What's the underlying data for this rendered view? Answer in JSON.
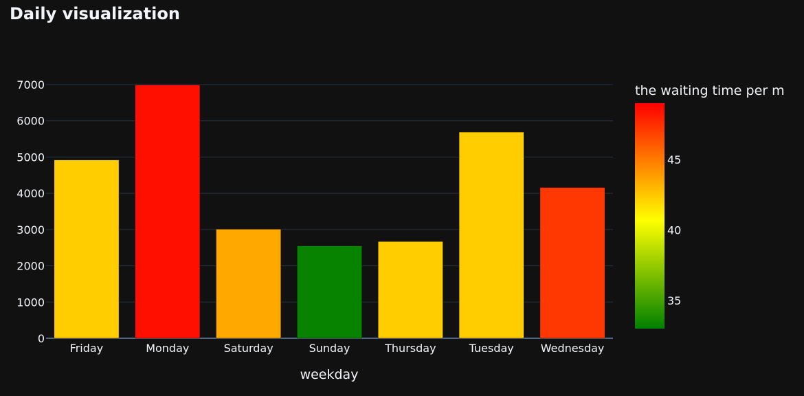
{
  "chart_data": {
    "type": "bar",
    "title": "Daily visualization",
    "xlabel": "weekday",
    "ylabel": "",
    "categories": [
      "Friday",
      "Monday",
      "Saturday",
      "Sunday",
      "Thursday",
      "Tuesday",
      "Wednesday"
    ],
    "values": [
      4920,
      6990,
      3010,
      2550,
      2670,
      5690,
      4160
    ],
    "color_values": [
      42.3,
      48.5,
      43.5,
      33.2,
      42.3,
      42.3,
      47.2
    ],
    "ylim": [
      0,
      7000
    ],
    "yticks": [
      0,
      1000,
      2000,
      3000,
      4000,
      5000,
      6000,
      7000
    ],
    "grid": true,
    "colorbar": {
      "title": "the waiting time per m",
      "range": [
        33,
        49
      ],
      "ticks": [
        35,
        40,
        45
      ],
      "colorscale": [
        "#008000",
        "#ffff00",
        "#ff0000"
      ]
    },
    "colors": {
      "background": "#111111",
      "grid": "#283442",
      "text": "#f2f5fa"
    }
  }
}
